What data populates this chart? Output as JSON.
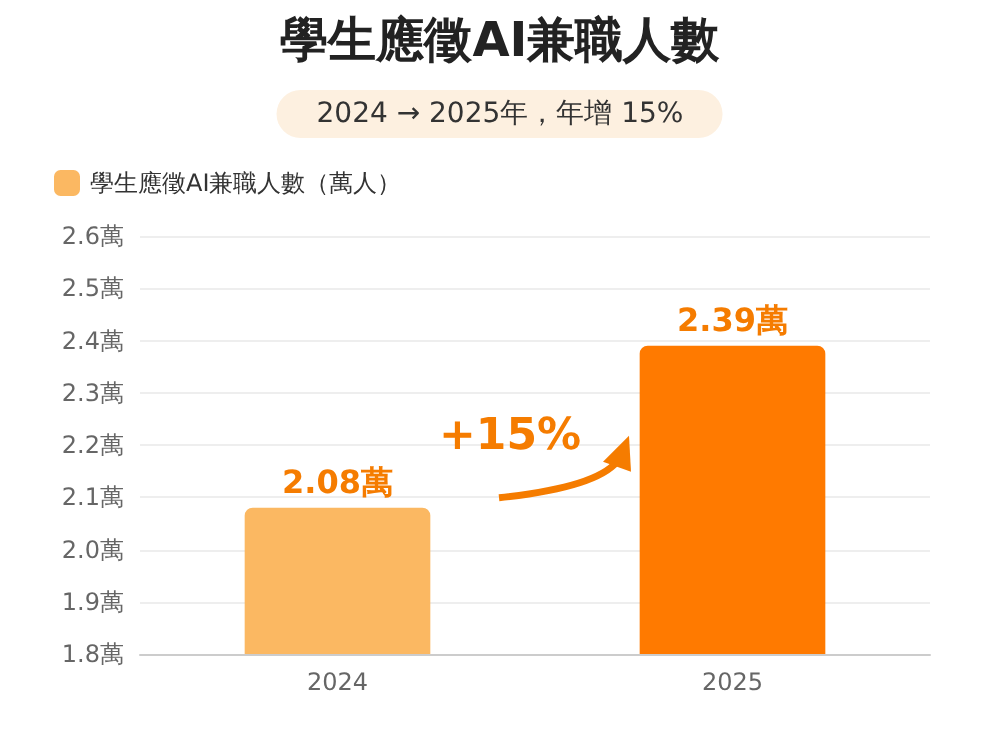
{
  "chart_data": {
    "type": "bar",
    "title": "學生應徵AI兼職人數",
    "subtitle": "2024 → 2025年，年增 15%",
    "categories": [
      "2024",
      "2025"
    ],
    "series": [
      {
        "name": "學生應徵AI兼職人數（萬人）",
        "color": "#fbb862",
        "colors": [
          "#fbb862",
          "#ff7a00"
        ],
        "values": [
          2.08,
          2.39
        ],
        "value_labels": [
          "2.08萬",
          "2.39萬"
        ]
      }
    ],
    "ylim": [
      1.8,
      2.6
    ],
    "yticks": [
      {
        "value": 1.8,
        "label": "1.8萬"
      },
      {
        "value": 1.9,
        "label": "1.9萬"
      },
      {
        "value": 2.0,
        "label": "2.0萬"
      },
      {
        "value": 2.1,
        "label": "2.1萬"
      },
      {
        "value": 2.2,
        "label": "2.2萬"
      },
      {
        "value": 2.3,
        "label": "2.3萬"
      },
      {
        "value": 2.4,
        "label": "2.4萬"
      },
      {
        "value": 2.5,
        "label": "2.5萬"
      },
      {
        "value": 2.6,
        "label": "2.6萬"
      }
    ],
    "grid": "y",
    "legend": "top left",
    "annotations": [
      "+15%"
    ]
  }
}
